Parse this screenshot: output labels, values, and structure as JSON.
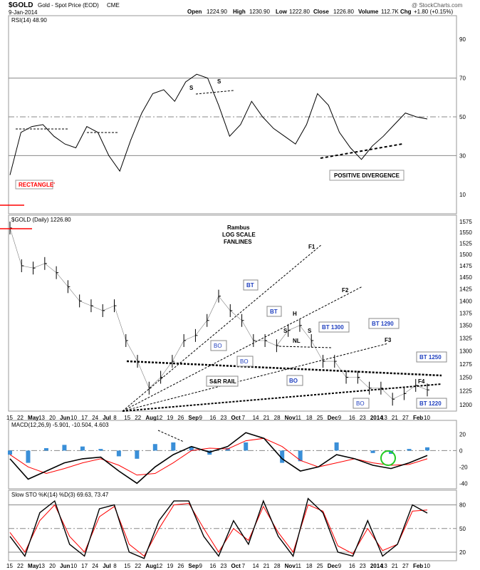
{
  "header": {
    "symbol": "$GOLD",
    "name": "Gold - Spot Price (EOD)",
    "exchange": "CME",
    "date": "9-Jan-2014",
    "open_label": "Open",
    "open": "1224.90",
    "high_label": "High",
    "high": "1230.90",
    "low_label": "Low",
    "low": "1222.80",
    "close_label": "Close",
    "close": "1226.80",
    "volume_label": "Volume",
    "volume": "112.7K",
    "chg_label": "Chg",
    "chg": "+1.80 (+0.15%)",
    "watermark": "@ StockCharts.com"
  },
  "colors": {
    "price": "#000000",
    "ma_signal": "#ff0000",
    "histogram": "#3a8fd8",
    "annotation_blue": "#1f3fbf",
    "annotation_red": "#ff0000",
    "rsi_fill": "#8b5a5a",
    "circle": "#22cc22"
  },
  "annotations": {
    "rsi_rectangle": "RECTANGLE'",
    "positive_divergence": "POSITIVE DIVERGENCE",
    "rambus": "Rambus",
    "log_scale": "LOG SCALE",
    "fanlines": "FANLINES",
    "f1": "F1",
    "f2": "F2",
    "f3": "F3",
    "f4": "F4",
    "bt": "BT",
    "bt2": "BT",
    "bt1300": "BT 1300",
    "bt1290": "BT 1290",
    "bt1250": "BT 1250",
    "bt1220": "BT 1220",
    "bo1": "BO",
    "bo2": "BO",
    "bo3": "BO",
    "bo4": "BO",
    "h": "H",
    "s1": "S",
    "s2": "S",
    "nl": "NL",
    "sr_rail": "S&R RAIL",
    "rsi_s1": "S",
    "rsi_s2": "S"
  },
  "chart_data": [
    {
      "type": "line",
      "panel": "RSI",
      "title": "RSI(14) 48.90",
      "ylim": [
        0,
        100
      ],
      "y_ticks": [
        10,
        30,
        50,
        70,
        90
      ],
      "series": [
        {
          "name": "RSI(14)",
          "values": [
            20,
            42,
            45,
            46,
            40,
            36,
            34,
            45,
            42,
            30,
            22,
            38,
            52,
            62,
            64,
            58,
            68,
            72,
            70,
            56,
            40,
            46,
            58,
            50,
            44,
            40,
            36,
            46,
            62,
            56,
            42,
            34,
            28,
            35,
            40,
            46,
            52,
            50,
            48.9
          ]
        }
      ]
    },
    {
      "type": "line",
      "panel": "Price",
      "title": "$GOLD (Daily) 1226.80",
      "y_scale": "log",
      "ylim": [
        1185,
        1585
      ],
      "y_ticks": [
        1200,
        1225,
        1250,
        1275,
        1300,
        1325,
        1350,
        1375,
        1400,
        1425,
        1450,
        1475,
        1500,
        1525,
        1550,
        1575
      ],
      "x_ticks": [
        "15",
        "22",
        "May",
        "13",
        "20",
        "Jun",
        "10",
        "17",
        "24",
        "Jul",
        "8",
        "15",
        "22",
        "Aug",
        "12",
        "19",
        "26",
        "Sep",
        "9",
        "16",
        "23",
        "Oct",
        "7",
        "14",
        "21",
        "28",
        "Nov",
        "11",
        "18",
        "25",
        "Dec",
        "9",
        "16",
        "23",
        "2014",
        "13",
        "21",
        "27",
        "Feb",
        "10"
      ],
      "series": [
        {
          "name": "$GOLD",
          "values": [
            1560,
            1475,
            1470,
            1480,
            1460,
            1430,
            1400,
            1390,
            1380,
            1390,
            1320,
            1280,
            1230,
            1250,
            1280,
            1320,
            1330,
            1360,
            1410,
            1380,
            1360,
            1320,
            1320,
            1310,
            1340,
            1350,
            1320,
            1280,
            1280,
            1250,
            1250,
            1230,
            1230,
            1210,
            1220,
            1235,
            1226.8
          ]
        }
      ]
    },
    {
      "type": "line",
      "panel": "MACD",
      "title": "MACD(12,26,9) -5.901, -10.504, 4.603",
      "ylim": [
        -45,
        30
      ],
      "y_ticks": [
        -40,
        -20,
        0,
        20
      ],
      "series": [
        {
          "name": "MACD",
          "values": [
            -10,
            -35,
            -25,
            -15,
            -10,
            -8,
            -25,
            -40,
            -20,
            -5,
            5,
            -2,
            5,
            22,
            15,
            -10,
            -25,
            -20,
            -5,
            -10,
            -18,
            -22,
            -15,
            -6
          ]
        },
        {
          "name": "Signal",
          "values": [
            -5,
            -20,
            -28,
            -22,
            -15,
            -10,
            -18,
            -30,
            -28,
            -15,
            0,
            3,
            2,
            12,
            15,
            5,
            -12,
            -20,
            -15,
            -10,
            -15,
            -18,
            -17,
            -10
          ]
        }
      ]
    },
    {
      "type": "line",
      "panel": "STO",
      "title": "Slow STO %K(14) %D(3) 69.63, 73.47",
      "ylim": [
        10,
        95
      ],
      "y_ticks": [
        20,
        50,
        80
      ],
      "series": [
        {
          "name": "%K",
          "values": [
            40,
            15,
            70,
            85,
            30,
            15,
            75,
            80,
            20,
            12,
            60,
            85,
            85,
            40,
            15,
            60,
            30,
            85,
            40,
            15,
            88,
            70,
            20,
            15,
            60,
            15,
            30,
            80,
            69.63
          ]
        },
        {
          "name": "%D",
          "values": [
            45,
            20,
            60,
            80,
            40,
            20,
            65,
            78,
            30,
            15,
            50,
            80,
            82,
            50,
            20,
            50,
            35,
            78,
            45,
            20,
            80,
            72,
            28,
            18,
            50,
            22,
            30,
            72,
            73.47
          ]
        }
      ]
    }
  ]
}
